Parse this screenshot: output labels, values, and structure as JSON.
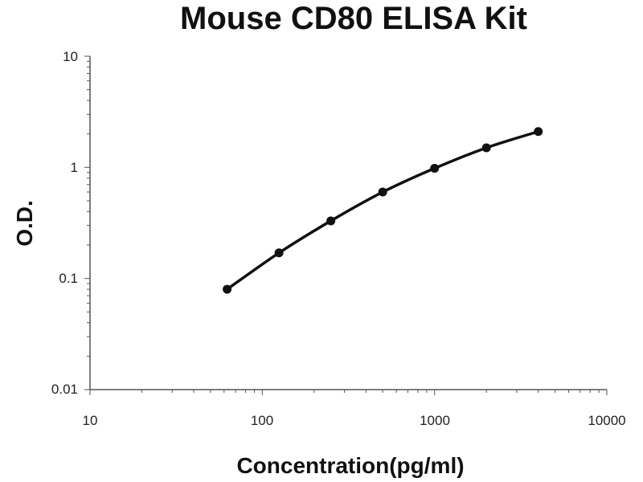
{
  "chart_data": {
    "type": "line",
    "title": "Mouse CD80 ELISA Kit",
    "xlabel": "Concentration(pg/ml)",
    "ylabel": "O.D.",
    "x_scale": "log",
    "y_scale": "log",
    "xlim": [
      10,
      10000
    ],
    "ylim": [
      0.01,
      10
    ],
    "x_ticks": [
      "10",
      "100",
      "1000",
      "10000"
    ],
    "y_ticks": [
      "10",
      "1",
      "0.1",
      "0.01"
    ],
    "grid": false,
    "legend": "none",
    "series": [
      {
        "x": [
          62.5,
          125,
          250,
          500,
          1000,
          2000,
          4000
        ],
        "y": [
          0.08,
          0.17,
          0.33,
          0.6,
          0.98,
          1.5,
          2.1
        ]
      }
    ]
  },
  "colors": {
    "line": "#111111",
    "axis": "#555555",
    "text": "#111111"
  }
}
